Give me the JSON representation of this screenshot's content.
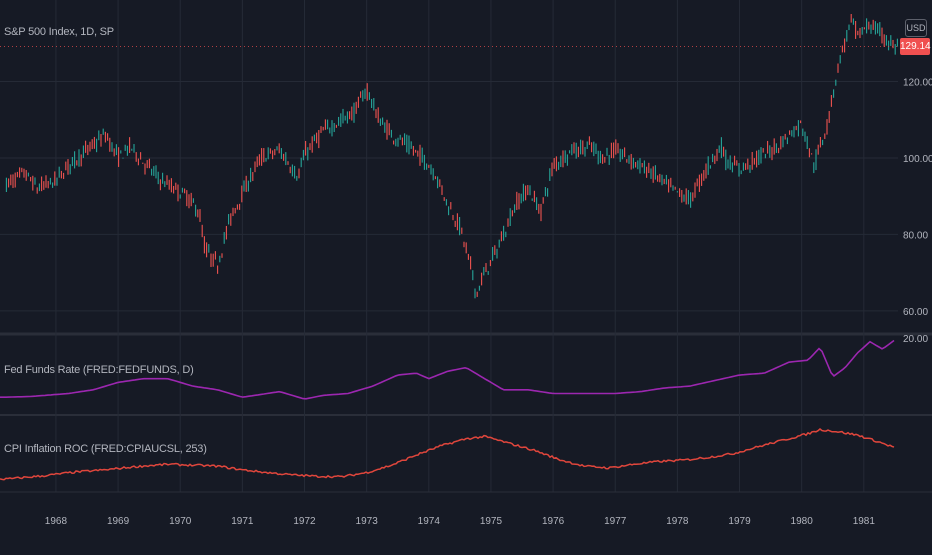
{
  "panes": {
    "price_label": "S&P 500 Index, 1D, SP",
    "fed_label": "Fed Funds Rate (FRED:FEDFUNDS, D)",
    "cpi_label": "CPI Inflation ROC (FRED:CPIAUCSL, 253)",
    "currency": "USD",
    "last_price": "129.14",
    "fed_axis_value": "20.00"
  },
  "colors": {
    "background": "#161a25",
    "grid": "#252a36",
    "up": "#26a69a",
    "down": "#ef5350",
    "fed_line": "#9c27b0",
    "cpi_line": "#e0463c",
    "price_tag": "#f05050"
  },
  "chart_data": [
    {
      "type": "line",
      "style": "candlestick",
      "title": "S&P 500 Index, 1D, SP",
      "x": [
        1967.2,
        1967.5,
        1967.7,
        1968.0,
        1968.2,
        1968.5,
        1968.8,
        1969.0,
        1969.2,
        1969.4,
        1969.7,
        1969.9,
        1970.1,
        1970.3,
        1970.4,
        1970.6,
        1970.8,
        1971.1,
        1971.3,
        1971.6,
        1971.9,
        1972.0,
        1972.3,
        1972.6,
        1972.8,
        1973.0,
        1973.2,
        1973.4,
        1973.6,
        1973.9,
        1974.1,
        1974.3,
        1974.5,
        1974.7,
        1974.76,
        1974.9,
        1975.1,
        1975.4,
        1975.6,
        1975.8,
        1976.0,
        1976.3,
        1976.6,
        1976.8,
        1977.0,
        1977.3,
        1977.6,
        1977.9,
        1978.1,
        1978.2,
        1978.5,
        1978.7,
        1978.8,
        1979.0,
        1979.3,
        1979.6,
        1979.8,
        1980.0,
        1980.2,
        1980.4,
        1980.6,
        1980.8,
        1980.9,
        1981.1,
        1981.3,
        1981.5
      ],
      "values": [
        93,
        96,
        92,
        94,
        98,
        102,
        106,
        100,
        103,
        99,
        94,
        92,
        90,
        86,
        76,
        72,
        84,
        94,
        100,
        102,
        95,
        101,
        107,
        110,
        112,
        118,
        110,
        106,
        104,
        100,
        96,
        88,
        82,
        70,
        64,
        70,
        76,
        88,
        92,
        86,
        98,
        102,
        103,
        100,
        102,
        99,
        96,
        92,
        90,
        89,
        98,
        103,
        99,
        97,
        100,
        103,
        106,
        109,
        98,
        108,
        125,
        136,
        132,
        135,
        132,
        129
      ],
      "last": 129.14,
      "ylim": [
        55,
        140
      ],
      "yticks": [
        60,
        80,
        100,
        120
      ],
      "yticklabels": [
        "60.00",
        "80.00",
        "100.00",
        "120.00"
      ]
    },
    {
      "type": "line",
      "title": "Fed Funds Rate (FRED:FEDFUNDS, D)",
      "x": [
        1967.2,
        1967.6,
        1968.2,
        1968.6,
        1969.0,
        1969.4,
        1969.8,
        1970.2,
        1970.6,
        1971.0,
        1971.2,
        1971.6,
        1972.0,
        1972.3,
        1972.7,
        1973.1,
        1973.5,
        1973.8,
        1974.0,
        1974.3,
        1974.6,
        1974.9,
        1975.2,
        1975.6,
        1976.0,
        1976.5,
        1977.0,
        1977.4,
        1977.8,
        1978.2,
        1978.6,
        1979.0,
        1979.4,
        1979.8,
        1980.1,
        1980.3,
        1980.5,
        1980.7,
        1980.9,
        1981.1,
        1981.3,
        1981.5
      ],
      "values": [
        4.0,
        4.2,
        5.0,
        6.0,
        8.0,
        9.0,
        9.0,
        7.0,
        6.0,
        4.0,
        4.5,
        5.5,
        3.5,
        4.5,
        5.0,
        7.0,
        10.0,
        10.5,
        9.0,
        11.0,
        12.0,
        9.0,
        6.0,
        6.0,
        5.0,
        5.0,
        5.0,
        5.5,
        6.5,
        7.0,
        8.5,
        10.0,
        10.5,
        13.5,
        14.0,
        17.5,
        9.5,
        12.0,
        16.0,
        19.0,
        17.0,
        19.5
      ],
      "ylim": [
        0,
        20
      ],
      "yticks": [
        20
      ],
      "yticklabels": [
        "20.00"
      ]
    },
    {
      "type": "line",
      "title": "CPI Inflation ROC (FRED:CPIAUCSL, 253)",
      "x": [
        1967.2,
        1967.8,
        1968.3,
        1968.8,
        1969.3,
        1969.8,
        1970.2,
        1970.6,
        1971.0,
        1971.4,
        1971.8,
        1972.2,
        1972.6,
        1973.0,
        1973.4,
        1973.8,
        1974.2,
        1974.6,
        1974.9,
        1975.3,
        1975.7,
        1976.1,
        1976.5,
        1976.9,
        1977.3,
        1977.7,
        1978.1,
        1978.5,
        1978.9,
        1979.3,
        1979.7,
        1980.1,
        1980.3,
        1980.6,
        1980.9,
        1981.2,
        1981.5
      ],
      "values": [
        2.8,
        3.5,
        4.3,
        4.8,
        5.5,
        6.0,
        5.8,
        5.6,
        4.8,
        4.2,
        3.7,
        3.4,
        3.3,
        4.2,
        5.8,
        8.0,
        10.0,
        11.5,
        12.0,
        10.5,
        9.0,
        7.0,
        5.6,
        5.2,
        6.0,
        6.6,
        6.9,
        7.5,
        8.3,
        9.8,
        11.2,
        12.6,
        13.5,
        13.0,
        12.3,
        11.0,
        9.6
      ],
      "ylim": [
        0,
        16
      ]
    }
  ],
  "x_axis": {
    "labels": [
      "1968",
      "1969",
      "1970",
      "1971",
      "1972",
      "1973",
      "1974",
      "1975",
      "1976",
      "1977",
      "1978",
      "1979",
      "1980",
      "1981"
    ]
  }
}
